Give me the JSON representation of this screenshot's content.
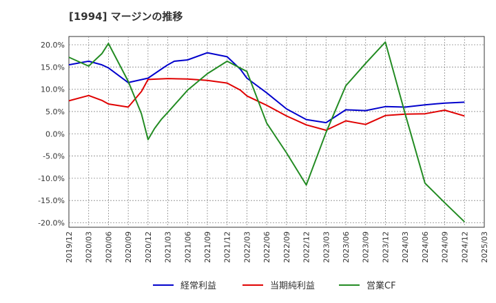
{
  "title": "[1994]  マージンの推移",
  "chart_data": {
    "type": "line",
    "title": "[1994]  マージンの推移",
    "xlabel": "",
    "ylabel": "",
    "x_ticks": [
      "2019/12",
      "2020/03",
      "2020/06",
      "2020/09",
      "2020/12",
      "2021/03",
      "2021/06",
      "2021/09",
      "2021/12",
      "2022/03",
      "2022/06",
      "2022/09",
      "2022/12",
      "2023/03",
      "2023/06",
      "2023/09",
      "2023/12",
      "2024/03",
      "2024/06",
      "2024/09",
      "2024/12",
      "2025/03"
    ],
    "y_ticks": [
      "20.0%",
      "15.0%",
      "10.0%",
      "5.0%",
      "0.0%",
      "-5.0%",
      "-10.0%",
      "-15.0%",
      "-20.0%"
    ],
    "ylim": [
      -21,
      21
    ],
    "grid": true,
    "legend_position": "bottom",
    "series": [
      {
        "name": "経常利益",
        "color": "#0000cc",
        "points": [
          [
            "2019/12",
            15.5
          ],
          [
            "2020/03",
            16.3
          ],
          [
            "2020/05",
            15.5
          ],
          [
            "2020/06",
            14.8
          ],
          [
            "2020/09",
            11.5
          ],
          [
            "2020/12",
            12.5
          ],
          [
            "2021/02",
            14.5
          ],
          [
            "2021/03",
            15.5
          ],
          [
            "2021/04",
            16.3
          ],
          [
            "2021/06",
            16.6
          ],
          [
            "2021/09",
            18.2
          ],
          [
            "2021/12",
            17.3
          ],
          [
            "2022/02",
            14.5
          ],
          [
            "2022/03",
            12.5
          ],
          [
            "2022/06",
            9.2
          ],
          [
            "2022/09",
            5.6
          ],
          [
            "2022/12",
            3.2
          ],
          [
            "2023/03",
            2.5
          ],
          [
            "2023/06",
            5.4
          ],
          [
            "2023/09",
            5.2
          ],
          [
            "2023/12",
            6.1
          ],
          [
            "2024/03",
            6.0
          ],
          [
            "2024/06",
            6.5
          ],
          [
            "2024/09",
            6.9
          ],
          [
            "2024/12",
            7.1
          ]
        ]
      },
      {
        "name": "当期純利益",
        "color": "#e00000",
        "points": [
          [
            "2019/12",
            7.4
          ],
          [
            "2020/03",
            8.6
          ],
          [
            "2020/05",
            7.5
          ],
          [
            "2020/06",
            6.7
          ],
          [
            "2020/09",
            6.0
          ],
          [
            "2020/11",
            9.5
          ],
          [
            "2020/12",
            12.2
          ],
          [
            "2021/03",
            12.4
          ],
          [
            "2021/06",
            12.3
          ],
          [
            "2021/09",
            12.0
          ],
          [
            "2021/12",
            11.4
          ],
          [
            "2022/02",
            9.8
          ],
          [
            "2022/03",
            8.5
          ],
          [
            "2022/06",
            6.4
          ],
          [
            "2022/09",
            4.0
          ],
          [
            "2022/12",
            2.0
          ],
          [
            "2023/03",
            0.8
          ],
          [
            "2023/06",
            2.9
          ],
          [
            "2023/09",
            2.1
          ],
          [
            "2023/12",
            4.1
          ],
          [
            "2024/03",
            4.4
          ],
          [
            "2024/06",
            4.5
          ],
          [
            "2024/09",
            5.3
          ],
          [
            "2024/12",
            4.0
          ]
        ]
      },
      {
        "name": "営業CF",
        "color": "#228b22",
        "points": [
          [
            "2019/12",
            17.2
          ],
          [
            "2020/03",
            15.2
          ],
          [
            "2020/05",
            18.0
          ],
          [
            "2020/06",
            20.3
          ],
          [
            "2020/09",
            11.8
          ],
          [
            "2020/11",
            4.5
          ],
          [
            "2020/12",
            -1.3
          ],
          [
            "2021/01",
            1.2
          ],
          [
            "2021/02",
            3.2
          ],
          [
            "2021/03",
            4.8
          ],
          [
            "2021/06",
            9.8
          ],
          [
            "2021/09",
            13.5
          ],
          [
            "2021/12",
            16.3
          ],
          [
            "2022/03",
            14.0
          ],
          [
            "2022/06",
            2.4
          ],
          [
            "2022/09",
            -4.3
          ],
          [
            "2022/12",
            -11.5
          ],
          [
            "2023/03",
            0.3
          ],
          [
            "2023/06",
            10.8
          ],
          [
            "2023/09",
            15.8
          ],
          [
            "2023/12",
            20.6
          ],
          [
            "2024/03",
            4.5
          ],
          [
            "2024/06",
            -11.1
          ],
          [
            "2024/09",
            -15.5
          ],
          [
            "2024/12",
            -19.8
          ]
        ]
      }
    ]
  }
}
